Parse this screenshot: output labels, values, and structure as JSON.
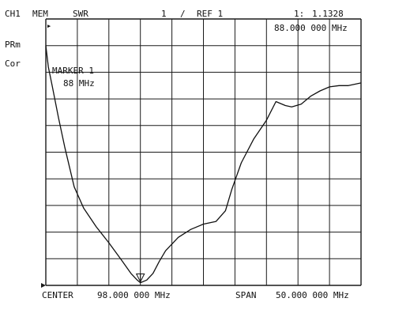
{
  "header": {
    "channel": "CH1",
    "mem": "MEM",
    "format": "SWR",
    "scale_div": "1",
    "slash": "/",
    "ref": "REF 1",
    "marker_num": "1:",
    "marker_value": "1.1328",
    "marker_freq": "88.000 000 MHz"
  },
  "side": {
    "prm": "PRm",
    "cor": "Cor"
  },
  "marker_box": {
    "title": "MARKER 1",
    "freq": "88 MHz"
  },
  "footer": {
    "center_label": "CENTER",
    "center_value": "98.000 000 MHz",
    "span_label": "SPAN",
    "span_value": "50.000 000 MHz"
  },
  "chart_data": {
    "type": "line",
    "x_unit": "MHz",
    "y_unit": "SWR",
    "xlim": [
      73,
      123
    ],
    "ylim": [
      1,
      11
    ],
    "grid": true,
    "x_divisions": 10,
    "y_divisions": 10,
    "series": [
      {
        "x": [
          73.0,
          73.4,
          74.0,
          75.0,
          76.0,
          77.5,
          79.0,
          81.0,
          83.0,
          85.0,
          86.5,
          87.5,
          88.0,
          89.0,
          90.0,
          91.0,
          92.0,
          94.0,
          96.0,
          98.0,
          100.0,
          101.5,
          102.5,
          104.0,
          106.0,
          108.0,
          109.5,
          111.0,
          112.0,
          113.5,
          115.0,
          116.5,
          118.0,
          119.5,
          121.0,
          123.0
        ],
        "y": [
          10.0,
          9.2,
          8.5,
          7.3,
          6.2,
          4.7,
          3.9,
          3.2,
          2.6,
          1.95,
          1.45,
          1.2,
          1.1,
          1.2,
          1.45,
          1.9,
          2.3,
          2.8,
          3.1,
          3.3,
          3.4,
          3.8,
          4.6,
          5.6,
          6.5,
          7.2,
          7.9,
          7.75,
          7.7,
          7.8,
          8.1,
          8.3,
          8.45,
          8.5,
          8.5,
          8.6
        ]
      }
    ],
    "marker": {
      "x": 88.0,
      "y": 1.1328
    }
  }
}
